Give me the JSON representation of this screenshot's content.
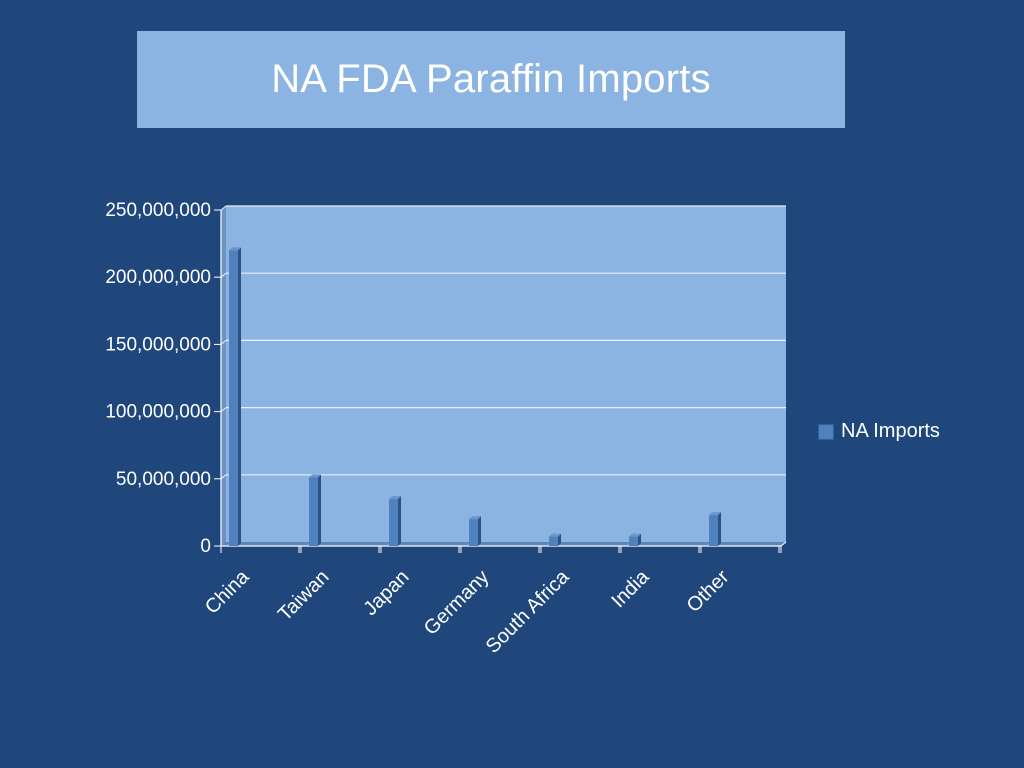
{
  "page": {
    "title": "NA FDA Paraffin Imports"
  },
  "colors": {
    "background": "#1f477c",
    "title_box": "#8cb4e2",
    "plot_area": "#8cb4e2",
    "bar": "#4f81bd",
    "bar_dark": "#2b5186",
    "grid": "#e8f0fa"
  },
  "chart_data": {
    "type": "bar",
    "title": "NA FDA Paraffin Imports",
    "categories": [
      "China",
      "Taiwan",
      "Japan",
      "Germany",
      "South Africa",
      "India",
      "Other"
    ],
    "series": [
      {
        "name": "NA Imports",
        "values": [
          220000000,
          51000000,
          35000000,
          20000000,
          7000000,
          7000000,
          23000000
        ]
      }
    ],
    "yticks": [
      "0",
      "50,000,000",
      "100,000,000",
      "150,000,000",
      "200,000,000",
      "250,000,000"
    ],
    "ylim": [
      0,
      250000000
    ],
    "xlabel": "",
    "ylabel": "",
    "grid": true,
    "legend_position": "right"
  }
}
